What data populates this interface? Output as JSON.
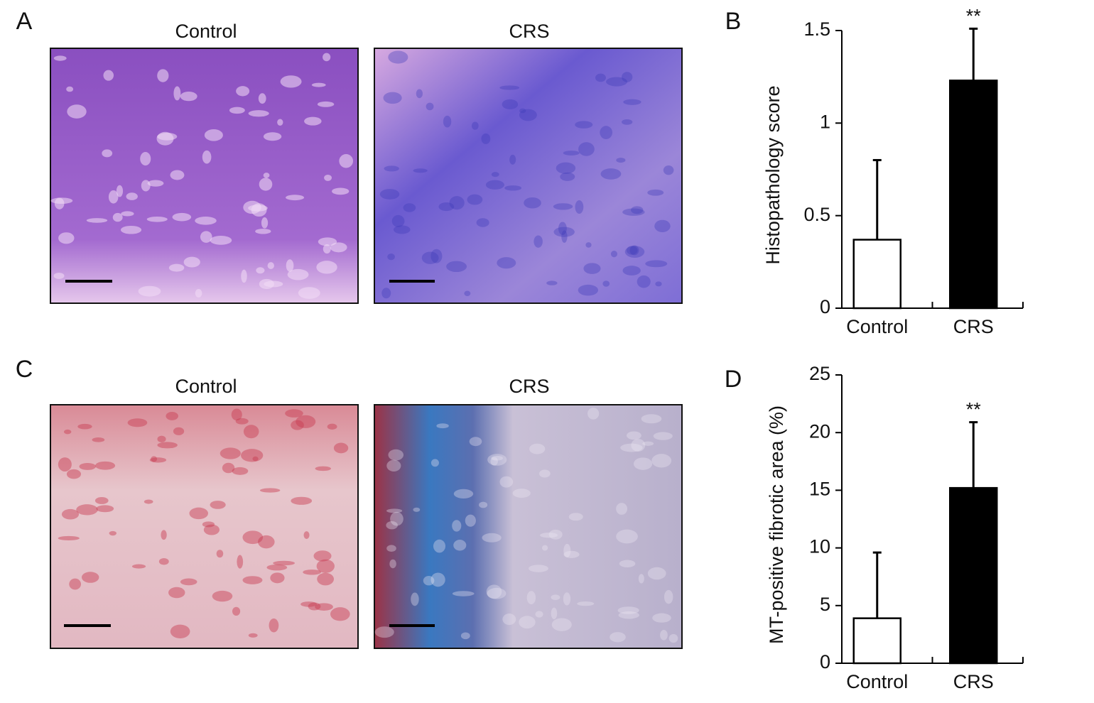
{
  "panels": {
    "labels": [
      "A",
      "B",
      "C",
      "D"
    ],
    "image_titles": [
      [
        "Control",
        "CRS"
      ],
      [
        "Control",
        "CRS"
      ]
    ]
  },
  "chart_data": [
    {
      "type": "bar",
      "ylabel": "Histopathology score",
      "categories": [
        "Control",
        "CRS"
      ],
      "values": [
        0.37,
        1.23
      ],
      "errors": [
        0.43,
        0.28
      ],
      "colors": [
        "#ffffff",
        "#000000"
      ],
      "annotation": {
        "text": "**",
        "category": "CRS"
      },
      "ylim": [
        0,
        1.5
      ],
      "yticks": [
        0,
        0.5,
        1,
        1.5
      ]
    },
    {
      "type": "bar",
      "ylabel": "MT-positive fibrotic area (%)",
      "categories": [
        "Control",
        "CRS"
      ],
      "values": [
        3.9,
        15.2
      ],
      "errors": [
        5.7,
        5.7
      ],
      "colors": [
        "#ffffff",
        "#000000"
      ],
      "annotation": {
        "text": "**",
        "category": "CRS"
      },
      "ylim": [
        0,
        25
      ],
      "yticks": [
        0,
        5,
        10,
        15,
        20,
        25
      ]
    }
  ]
}
